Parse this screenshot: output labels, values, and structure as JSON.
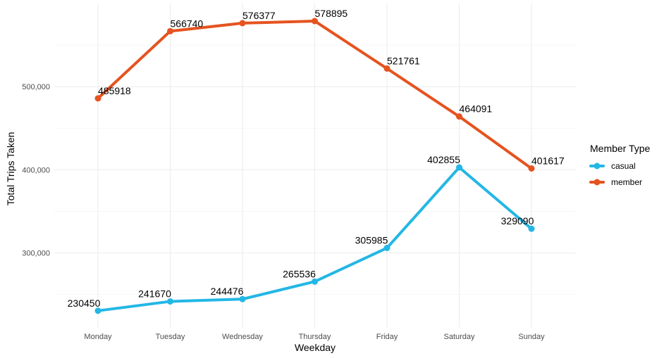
{
  "chart_data": {
    "type": "line",
    "xlabel": "Weekday",
    "ylabel": "Total Trips Taken",
    "categories": [
      "Monday",
      "Tuesday",
      "Wednesday",
      "Thursday",
      "Friday",
      "Saturday",
      "Sunday"
    ],
    "y_ticks": [
      300000,
      400000,
      500000
    ],
    "y_tick_labels": [
      "300,000",
      "400,000",
      "500,000"
    ],
    "ylim": [
      210000,
      600000
    ],
    "grid": true,
    "legend": {
      "title": "Member Type",
      "position": "right"
    },
    "series": [
      {
        "name": "casual",
        "color": "#23b7e5",
        "values": [
          230450,
          241670,
          244476,
          265536,
          305985,
          402855,
          329090
        ]
      },
      {
        "name": "member",
        "color": "#e5531f",
        "values": [
          485918,
          566740,
          576377,
          578895,
          521761,
          464091,
          401617
        ]
      }
    ]
  }
}
